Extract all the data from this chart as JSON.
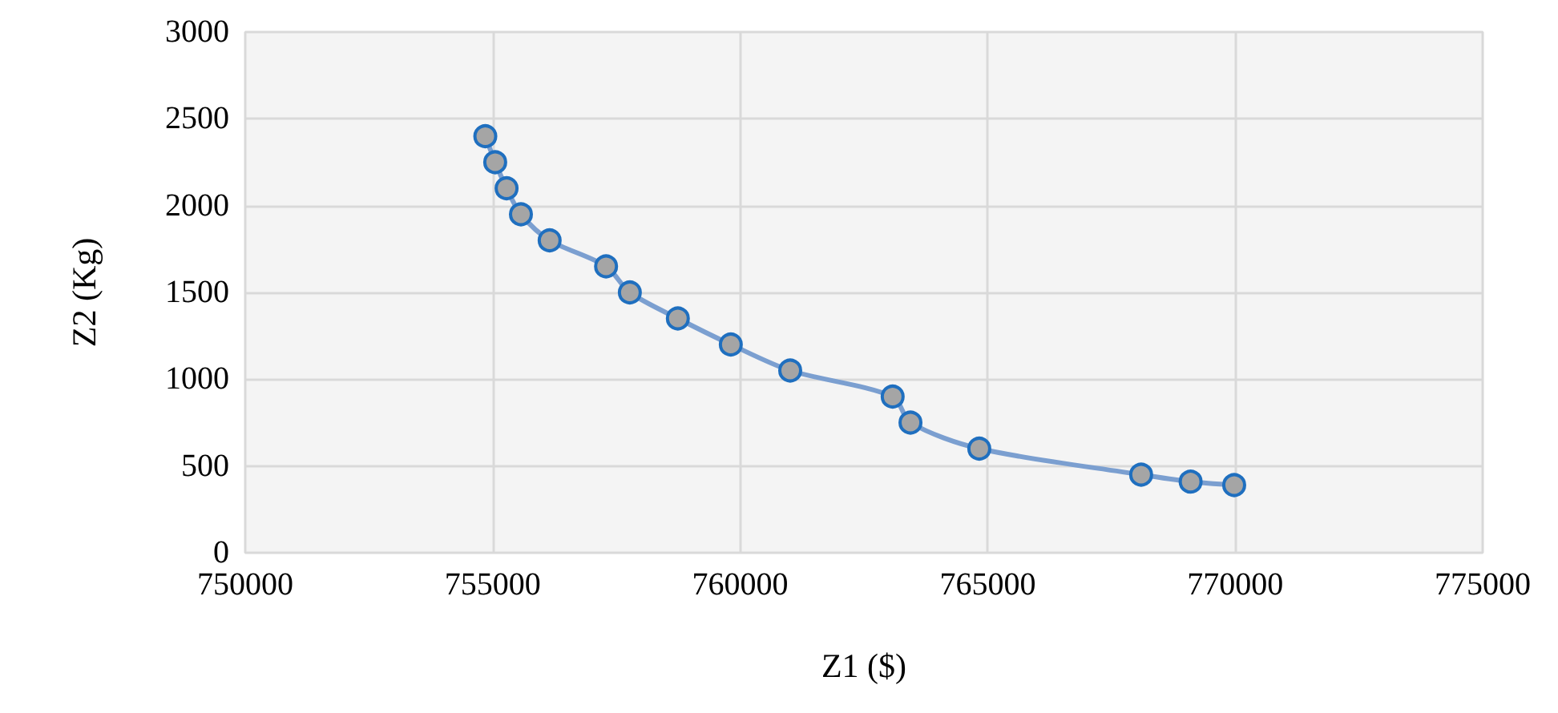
{
  "chart_data": {
    "type": "line",
    "xlabel": "Z1 ($)",
    "ylabel": "Z2 (Kg)",
    "x": [
      754850,
      755050,
      755280,
      755570,
      756150,
      757290,
      757770,
      758740,
      759810,
      761010,
      763080,
      763440,
      764830,
      768100,
      769100,
      769980
    ],
    "series": [
      {
        "color": "#7b9fd0",
        "values": [
          2400,
          2250,
          2100,
          1950,
          1800,
          1650,
          1500,
          1350,
          1200,
          1050,
          900,
          750,
          600,
          450,
          410,
          390
        ]
      }
    ],
    "xlim": [
      750000,
      775000
    ],
    "xticks": [
      750000,
      755000,
      760000,
      765000,
      770000,
      775000
    ],
    "ylim": [
      0,
      3000
    ],
    "yticks": [
      0,
      500,
      1000,
      1500,
      2000,
      2500,
      3000
    ],
    "grid": true,
    "marker": "circle",
    "line_style": "solid"
  }
}
